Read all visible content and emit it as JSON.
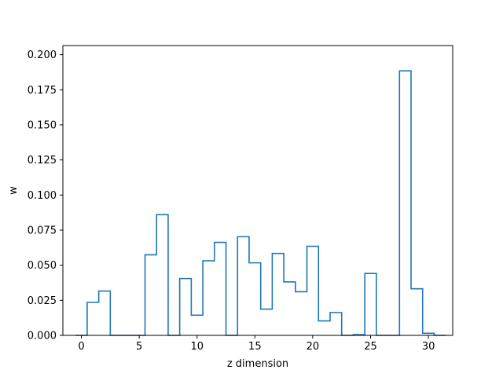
{
  "chart_data": {
    "type": "histogram-step",
    "title": "",
    "xlabel": "z dimension",
    "ylabel": "w",
    "xlim": [
      -1.6,
      32.1
    ],
    "ylim": [
      0,
      0.2065
    ],
    "x_ticks": [
      0,
      5,
      10,
      15,
      20,
      25,
      30
    ],
    "y_ticks": [
      0.0,
      0.025,
      0.05,
      0.075,
      0.1,
      0.125,
      0.15,
      0.175,
      0.2
    ],
    "y_tick_labels": [
      "0.000",
      "0.025",
      "0.050",
      "0.075",
      "0.100",
      "0.125",
      "0.150",
      "0.175",
      "0.200"
    ],
    "x_tick_labels": [
      "0",
      "5",
      "10",
      "15",
      "20",
      "25",
      "30"
    ],
    "bin_edges": [
      -0.5,
      0.5,
      1.5,
      2.5,
      3.5,
      4.5,
      5.5,
      6.5,
      7.5,
      8.5,
      9.5,
      10.5,
      11.5,
      12.5,
      13.5,
      14.5,
      15.5,
      16.5,
      17.5,
      18.5,
      19.5,
      20.5,
      21.5,
      22.5,
      23.5,
      24.5,
      25.5,
      26.5,
      27.5,
      28.5,
      29.5,
      30.5,
      31.5
    ],
    "values": [
      0.0,
      0.0235,
      0.0316,
      0.0,
      0.0,
      0.0,
      0.0574,
      0.086,
      0.0,
      0.0405,
      0.0144,
      0.0531,
      0.0663,
      0.0,
      0.0703,
      0.0517,
      0.0187,
      0.0584,
      0.0381,
      0.0311,
      0.0635,
      0.0103,
      0.0163,
      0.0,
      0.0005,
      0.0441,
      0.0,
      0.0,
      0.1885,
      0.0332,
      0.0015,
      0.0
    ],
    "line_color": "#1f77b4",
    "grid": false
  }
}
